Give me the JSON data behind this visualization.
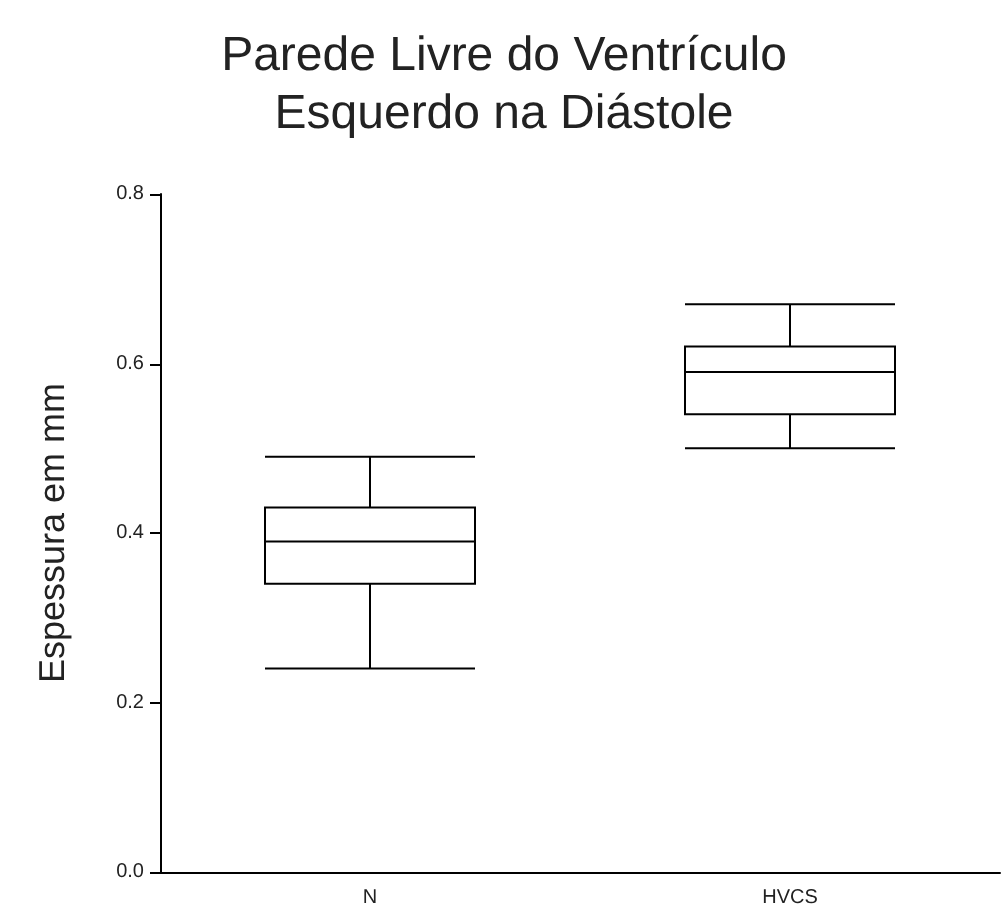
{
  "chart_data": {
    "type": "box",
    "title": "Parede Livre do Ventrículo\nEsquerdo na Diástole",
    "ylabel": "Espessura em mm",
    "categories": [
      "N",
      "HVCS"
    ],
    "boxes": [
      {
        "low": 0.24,
        "q1": 0.34,
        "median": 0.39,
        "q3": 0.43,
        "high": 0.49
      },
      {
        "low": 0.5,
        "q1": 0.54,
        "median": 0.59,
        "q3": 0.62,
        "high": 0.67
      }
    ],
    "color": "#000000",
    "ylim": [
      0,
      0.8
    ],
    "yticks": [
      {
        "value": 0,
        "label": "0.0"
      },
      {
        "value": 0.2,
        "label": "0.2"
      },
      {
        "value": 0.4,
        "label": "0.4"
      },
      {
        "value": 0.6,
        "label": "0.6"
      },
      {
        "value": 0.8,
        "label": "0.8"
      }
    ],
    "grid": false
  }
}
